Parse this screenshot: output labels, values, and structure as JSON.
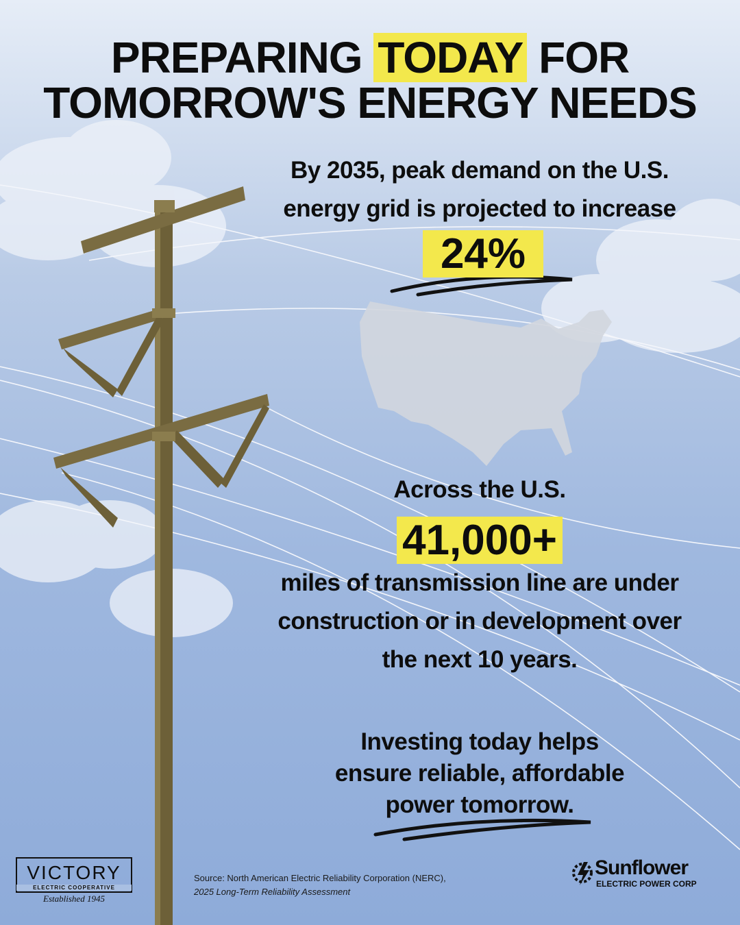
{
  "title": {
    "line1_before": "PREPARING",
    "highlight": "TODAY",
    "line1_after": "FOR",
    "line2": "TOMORROW'S ENERGY NEEDS"
  },
  "stat1": {
    "lines": [
      "By 2035, peak demand on the U.S.",
      "energy grid is projected to increase"
    ],
    "value": "24%"
  },
  "stat2": {
    "intro": "Across the U.S.",
    "value": "41,000+",
    "lines": [
      "miles of transmission line are under",
      "construction or in development over",
      "the next 10 years."
    ]
  },
  "closing": {
    "lines": [
      "Investing today helps",
      "ensure reliable, affordable",
      "power tomorrow."
    ]
  },
  "source": {
    "line1": "Source: North American Electric Reliability Corporation (NERC),",
    "line2": "2025 Long-Term Reliability Assessment"
  },
  "logos": {
    "victory": {
      "name": "VICTORY",
      "sub": "ELECTRIC COOPERATIVE",
      "est": "Established 1945"
    },
    "sunflower": {
      "name": "Sunflower",
      "sub": "ELECTRIC POWER CORP"
    }
  }
}
